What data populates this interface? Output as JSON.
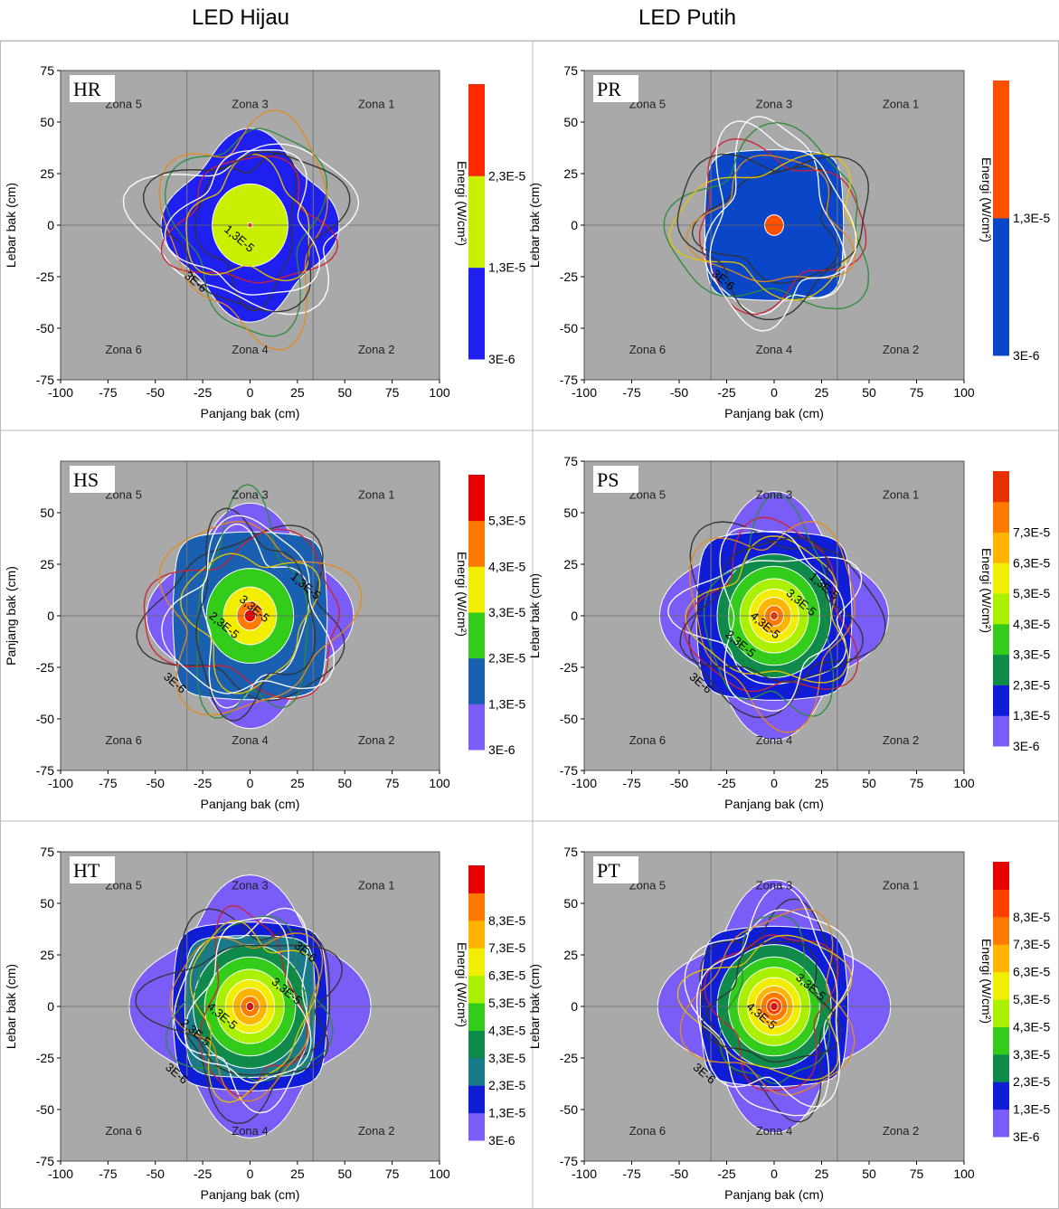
{
  "header": {
    "left_title": "LED Hijau",
    "right_title": "LED Putih"
  },
  "colors": {
    "plot_bg": "#a9a9a9",
    "levels_green": [
      "#7a5cf7",
      "#0f1ed6",
      "#1a6aa6",
      "#0f8a4a",
      "#33cc1a",
      "#aaf000",
      "#f2ee00",
      "#ffb400",
      "#ff7a00",
      "#ff4000",
      "#e60000"
    ],
    "track_colors": [
      "#333333",
      "#ffffff",
      "#cc2233",
      "#2e8b3a",
      "#e08a1e",
      "#e6c400"
    ]
  },
  "chart_data": [
    {
      "id": "HR",
      "type": "heatmap",
      "panel_label": "HR",
      "xlabel": "Panjang bak (cm)",
      "ylabel": "Lebar bak (cm)",
      "xlim": [
        -100,
        100
      ],
      "ylim": [
        -75,
        75
      ],
      "xticks": [
        "-100",
        "-75",
        "-50",
        "-25",
        "0",
        "25",
        "50",
        "75",
        "100"
      ],
      "yticks": [
        "75",
        "50",
        "25",
        "0",
        "-25",
        "-50",
        "-75"
      ],
      "zones": [
        "Zona 5",
        "Zona 3",
        "Zona 1",
        "Zona 6",
        "Zona 4",
        "Zona 2"
      ],
      "colorbar_label": "Energi (W/cm²)",
      "colorbar_ticks": [
        "3E-6",
        "1,3E-5",
        "2,3E-5"
      ],
      "colorbar_colors": [
        "#1f1ff0",
        "#c8f000",
        "#ff2a00"
      ],
      "contour_labels": [
        "1,3E-5",
        "3E-6"
      ],
      "contour_levels": [
        3e-06,
        1.3e-05,
        2.3e-05
      ]
    },
    {
      "id": "PR",
      "type": "heatmap",
      "panel_label": "PR",
      "xlabel": "Panjang bak (cm)",
      "ylabel": "Lebar bak (cm)",
      "xlim": [
        -100,
        100
      ],
      "ylim": [
        -75,
        75
      ],
      "xticks": [
        "-100",
        "-75",
        "-50",
        "-25",
        "0",
        "25",
        "50",
        "75",
        "100"
      ],
      "yticks": [
        "75",
        "50",
        "25",
        "0",
        "-25",
        "-50",
        "-75"
      ],
      "zones": [
        "Zona 5",
        "Zona 3",
        "Zona 1",
        "Zona 6",
        "Zona 4",
        "Zona 2"
      ],
      "colorbar_label": "Energi (W/cm²)",
      "colorbar_ticks": [
        "3E-6",
        "1,3E-5"
      ],
      "colorbar_colors": [
        "#0a46c8",
        "#ff5000"
      ],
      "contour_labels": [
        "3E-6"
      ],
      "contour_levels": [
        3e-06,
        1.3e-05
      ]
    },
    {
      "id": "HS",
      "type": "heatmap",
      "panel_label": "HS",
      "xlabel": "Panjang bak (cm)",
      "ylabel": "Panjang bak (cm)",
      "xlim": [
        -100,
        100
      ],
      "ylim": [
        -75,
        75
      ],
      "xticks": [
        "-100",
        "-75",
        "-50",
        "-25",
        "0",
        "25",
        "50",
        "75",
        "100"
      ],
      "yticks": [
        "50",
        "25",
        "0",
        "-25",
        "-50",
        "-75"
      ],
      "zones": [
        "Zona 5",
        "Zona 3",
        "Zona 1",
        "Zona 6",
        "Zona 4",
        "Zona 2"
      ],
      "colorbar_label": "Energi (W/cm²)",
      "colorbar_ticks": [
        "3E-6",
        "1,3E-5",
        "2,3E-5",
        "3,3E-5",
        "4,3E-5",
        "5,3E-5"
      ],
      "colorbar_colors": [
        "#7a5cf7",
        "#1a5fb0",
        "#33cc1a",
        "#f2ee00",
        "#ff7a00",
        "#e60000"
      ],
      "contour_labels": [
        "1,3E-5",
        "3,3E-5",
        "2,3E-5",
        "3E-6"
      ],
      "contour_levels": [
        3e-06,
        1.3e-05,
        2.3e-05,
        3.3e-05,
        4.3e-05,
        5.3e-05
      ]
    },
    {
      "id": "PS",
      "type": "heatmap",
      "panel_label": "PS",
      "xlabel": "Panjang bak (cm)",
      "ylabel": "Lebar bak (cm)",
      "xlim": [
        -100,
        100
      ],
      "ylim": [
        -75,
        75
      ],
      "xticks": [
        "-100",
        "-75",
        "-50",
        "-25",
        "0",
        "25",
        "50",
        "75",
        "100"
      ],
      "yticks": [
        "75",
        "50",
        "25",
        "0",
        "-25",
        "-50",
        "-75"
      ],
      "zones": [
        "Zona 5",
        "Zona 3",
        "Zona 1",
        "Zona 6",
        "Zona 4",
        "Zona 2"
      ],
      "colorbar_label": "Energi (W/cm²)",
      "colorbar_ticks": [
        "3E-6",
        "1,3E-5",
        "2,3E-5",
        "3,3E-5",
        "4,3E-5",
        "5,3E-5",
        "6,3E-5",
        "7,3E-5"
      ],
      "colorbar_colors": [
        "#7a5cf7",
        "#0f1ed6",
        "#0f8a4a",
        "#33cc1a",
        "#aaf000",
        "#f2ee00",
        "#ffb400",
        "#ff7a00",
        "#e63000"
      ],
      "contour_labels": [
        "1,3E-5",
        "3,3E-5",
        "4,3E-5",
        "2,3E-5",
        "3E-6"
      ],
      "contour_levels": [
        3e-06,
        1.3e-05,
        2.3e-05,
        3.3e-05,
        4.3e-05,
        5.3e-05,
        6.3e-05,
        7.3e-05
      ]
    },
    {
      "id": "HT",
      "type": "heatmap",
      "panel_label": "HT",
      "xlabel": "Panjang bak (cm)",
      "ylabel": "Lebar bak (cm)",
      "xlim": [
        -100,
        100
      ],
      "ylim": [
        -75,
        75
      ],
      "xticks": [
        "-100",
        "-75",
        "-50",
        "-25",
        "0",
        "25",
        "50",
        "75",
        "100"
      ],
      "yticks": [
        "75",
        "50",
        "25",
        "0",
        "-25",
        "-50",
        "-75"
      ],
      "zones": [
        "Zona 5",
        "Zona 3",
        "Zona 1",
        "Zona 6",
        "Zona 4",
        "Zona 2"
      ],
      "colorbar_label": "Energi (W/cm²)",
      "colorbar_ticks": [
        "3E-6",
        "1,3E-5",
        "2,3E-5",
        "3,3E-5",
        "4,3E-5",
        "5,3E-5",
        "6,3E-5",
        "7,3E-5",
        "8,3E-5"
      ],
      "colorbar_colors": [
        "#7a5cf7",
        "#0f1ed6",
        "#1a7a8a",
        "#0f8a4a",
        "#33cc1a",
        "#aaf000",
        "#f2ee00",
        "#ffb400",
        "#ff7a00",
        "#e60000"
      ],
      "contour_labels": [
        "3,3E-5",
        "4,3E-5",
        "2,3E-5",
        "3E-6",
        "3E-6"
      ],
      "contour_levels": [
        3e-06,
        1.3e-05,
        2.3e-05,
        3.3e-05,
        4.3e-05,
        5.3e-05,
        6.3e-05,
        7.3e-05,
        8.3e-05
      ]
    },
    {
      "id": "PT",
      "type": "heatmap",
      "panel_label": "PT",
      "xlabel": "Panjang bak (cm)",
      "ylabel": "Lebar bak (cm)",
      "xlim": [
        -100,
        100
      ],
      "ylim": [
        -75,
        75
      ],
      "xticks": [
        "-100",
        "-75",
        "-50",
        "-25",
        "0",
        "25",
        "50",
        "75",
        "100"
      ],
      "yticks": [
        "75",
        "50",
        "25",
        "0",
        "-25",
        "-50",
        "-75"
      ],
      "zones": [
        "Zona 5",
        "Zona 3",
        "Zona 1",
        "Zona 6",
        "Zona 4",
        "Zona 2"
      ],
      "colorbar_label": "Energi (W/cm²)",
      "colorbar_ticks": [
        "3E-6",
        "1,3E-5",
        "2,3E-5",
        "3,3E-5",
        "4,3E-5",
        "5,3E-5",
        "6,3E-5",
        "7,3E-5",
        "8,3E-5"
      ],
      "colorbar_colors": [
        "#7a5cf7",
        "#0f1ed6",
        "#0f8a4a",
        "#33cc1a",
        "#aaf000",
        "#f2ee00",
        "#ffb400",
        "#ff7a00",
        "#ff4000",
        "#e60000"
      ],
      "contour_labels": [
        "4,3E-5",
        "3,3E-5",
        "3E-6"
      ],
      "contour_levels": [
        3e-06,
        1.3e-05,
        2.3e-05,
        3.3e-05,
        4.3e-05,
        5.3e-05,
        6.3e-05,
        7.3e-05,
        8.3e-05
      ]
    }
  ]
}
